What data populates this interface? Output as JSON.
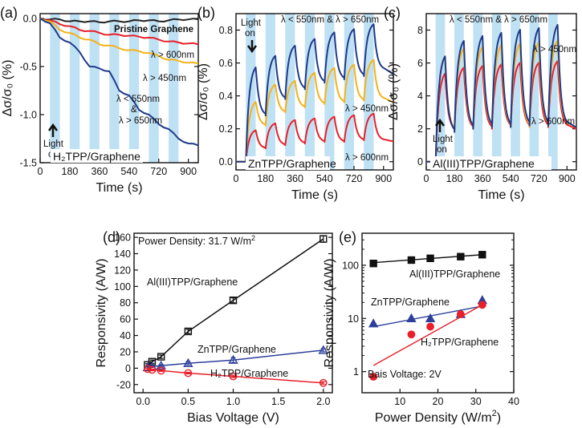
{
  "chart_data": [
    {
      "type": "line",
      "panel_label": "(a)",
      "xlabel": "Time (s)",
      "ylabel": "Δσ/σ₀ (%)",
      "xlim": [
        0,
        960
      ],
      "ylim": [
        -1.5,
        0.05
      ],
      "xticks": [
        0,
        180,
        360,
        540,
        720,
        900
      ],
      "yticks": [
        0.0,
        -0.5,
        -1.0,
        -1.5
      ],
      "ytick_labels": [
        "0.0",
        "-0.5",
        "-1.0",
        "-1.5"
      ],
      "light_on_intervals": [
        [
          60,
          120
        ],
        [
          180,
          240
        ],
        [
          300,
          360
        ],
        [
          420,
          480
        ],
        [
          540,
          600
        ],
        [
          660,
          720
        ],
        [
          780,
          840
        ]
      ],
      "series": [
        {
          "name": "Pristine Graphene",
          "color": "#222222",
          "x": [
            0,
            60,
            120,
            180,
            240,
            300,
            360,
            420,
            480,
            540,
            600,
            660,
            720,
            780,
            840,
            900,
            960
          ],
          "values": [
            0.0,
            -0.01,
            -0.01,
            -0.03,
            -0.03,
            -0.03,
            -0.04,
            -0.03,
            -0.03,
            -0.03,
            -0.02,
            -0.02,
            -0.03,
            -0.02,
            -0.01,
            -0.01,
            -0.01
          ]
        },
        {
          "name": "λ > 600nm",
          "color": "#e8202a",
          "x": [
            0,
            60,
            120,
            180,
            240,
            300,
            360,
            420,
            480,
            540,
            600,
            660,
            720,
            780,
            840,
            900,
            960
          ],
          "values": [
            0.0,
            -0.02,
            -0.06,
            -0.08,
            -0.12,
            -0.13,
            -0.15,
            -0.17,
            -0.17,
            -0.18,
            -0.19,
            -0.2,
            -0.22,
            -0.24,
            -0.25,
            -0.26,
            -0.27
          ]
        },
        {
          "name": "λ > 450nm",
          "color": "#f5b21a",
          "x": [
            0,
            60,
            120,
            180,
            240,
            300,
            360,
            420,
            480,
            540,
            600,
            660,
            720,
            780,
            840,
            900,
            960
          ],
          "values": [
            0.0,
            -0.03,
            -0.12,
            -0.15,
            -0.2,
            -0.22,
            -0.27,
            -0.28,
            -0.31,
            -0.33,
            -0.34,
            -0.36,
            -0.39,
            -0.43,
            -0.44,
            -0.46,
            -0.47
          ]
        },
        {
          "name": "λ < 550nm & λ > 650nm",
          "color": "#1f3a8a",
          "x": [
            0,
            60,
            120,
            180,
            240,
            300,
            360,
            420,
            480,
            540,
            600,
            660,
            720,
            780,
            840,
            900,
            960
          ],
          "values": [
            0.0,
            -0.05,
            -0.2,
            -0.25,
            -0.35,
            -0.5,
            -0.52,
            -0.55,
            -0.75,
            -0.8,
            -0.95,
            -1.0,
            -1.1,
            -1.15,
            -1.25,
            -1.3,
            -1.32
          ]
        }
      ],
      "annotations": {
        "pristine": "Pristine Graphene",
        "s600": "λ > 600nm",
        "s450": "λ > 450nm",
        "band1": "λ < 550nm",
        "amp": "&",
        "band2": "λ > 650nm",
        "light1": "Light",
        "light2": "on",
        "sample": "H₂TPP/Graphene"
      }
    },
    {
      "type": "line",
      "panel_label": "(b)",
      "xlabel": "Time (s)",
      "ylabel": "Δσ/σ₀ (%)",
      "xlim": [
        0,
        960
      ],
      "ylim": [
        -0.05,
        0.9
      ],
      "xticks": [
        0,
        180,
        360,
        540,
        720,
        900
      ],
      "yticks": [
        0.0,
        0.2,
        0.4,
        0.6,
        0.8
      ],
      "ytick_labels": [
        "0.0",
        "0.2",
        "0.4",
        "0.6",
        "0.8"
      ],
      "light_on_intervals": [
        [
          60,
          120
        ],
        [
          180,
          240
        ],
        [
          300,
          360
        ],
        [
          420,
          480
        ],
        [
          540,
          600
        ],
        [
          660,
          720
        ],
        [
          780,
          840
        ]
      ],
      "pulse_peaks": {
        "blue": [
          0.6,
          0.66,
          0.72,
          0.76,
          0.8,
          0.82,
          0.85
        ],
        "blue_trough": [
          0.28,
          0.38,
          0.44,
          0.48,
          0.5,
          0.52,
          0.56
        ],
        "yellow": [
          0.38,
          0.48,
          0.5,
          0.55,
          0.58,
          0.6,
          0.63
        ],
        "yellow_trough": [
          0.22,
          0.3,
          0.33,
          0.35,
          0.36,
          0.37,
          0.38
        ],
        "red": [
          0.2,
          0.24,
          0.26,
          0.27,
          0.28,
          0.29,
          0.3
        ],
        "red_trough": [
          0.08,
          0.1,
          0.11,
          0.12,
          0.12,
          0.13,
          0.13
        ]
      },
      "series": [
        {
          "name": "λ < 550nm & λ > 650nm",
          "color": "#1f3a8a"
        },
        {
          "name": "λ > 450nm",
          "color": "#f5b21a"
        },
        {
          "name": "λ > 600nm",
          "color": "#e8202a"
        }
      ],
      "annotations": {
        "band": "λ < 550nm & λ > 650nm",
        "s450": "λ > 450nm",
        "s600": "λ > 600nm",
        "light1": "Light",
        "light2": "on",
        "sample": "ZnTPP/Graphene"
      }
    },
    {
      "type": "line",
      "panel_label": "(c)",
      "xlabel": "Time (s)",
      "ylabel": "Δσ/σ₀ (%)",
      "xlim": [
        0,
        960
      ],
      "ylim": [
        -0.5,
        9.0
      ],
      "xticks": [
        0,
        180,
        360,
        540,
        720,
        900
      ],
      "yticks": [
        0,
        2,
        4,
        6,
        8
      ],
      "ytick_labels": [
        "0",
        "2",
        "4",
        "6",
        "8"
      ],
      "light_on_intervals": [
        [
          60,
          120
        ],
        [
          180,
          240
        ],
        [
          300,
          360
        ],
        [
          420,
          480
        ],
        [
          540,
          600
        ],
        [
          660,
          720
        ],
        [
          780,
          840
        ]
      ],
      "pulse_peaks": {
        "blue": [
          6.7,
          7.6,
          7.9,
          8.1,
          8.3,
          8.4,
          8.6
        ],
        "blue_trough": [
          1.8,
          2.0,
          2.1,
          2.1,
          2.2,
          2.2,
          2.2
        ],
        "yellow": [
          6.7,
          7.1,
          7.2,
          7.3,
          7.4,
          7.5,
          7.6
        ],
        "yellow_trough": [
          1.9,
          2.0,
          2.1,
          2.1,
          2.1,
          2.2,
          2.2
        ],
        "red": [
          5.6,
          5.9,
          6.0,
          6.1,
          6.2,
          6.2,
          6.3
        ],
        "red_trough": [
          1.9,
          2.0,
          2.0,
          2.1,
          2.1,
          2.1,
          2.1
        ]
      },
      "series": [
        {
          "name": "λ < 550nm & λ > 650nm",
          "color": "#1f3a8a"
        },
        {
          "name": "λ > 450nm",
          "color": "#f5b21a"
        },
        {
          "name": "λ > 600nm",
          "color": "#e8202a"
        }
      ],
      "annotations": {
        "band": "λ < 550nm & λ > 650nm",
        "s450": "λ > 450nm",
        "s600": "λ > 600nm",
        "light1": "Light",
        "light2": "on",
        "sample": "Al(III)TPP/Graphene"
      }
    },
    {
      "type": "line",
      "panel_label": "(d)",
      "xlabel": "Bias Voltage (V)",
      "ylabel": "Responsivity (A/W)",
      "xlim": [
        -0.1,
        2.1
      ],
      "ylim": [
        -30,
        165
      ],
      "xticks": [
        0.0,
        0.5,
        1.0,
        1.5,
        2.0
      ],
      "xtick_labels": [
        "0.0",
        "0.5",
        "1.0",
        "1.5",
        "2.0"
      ],
      "yticks": [
        -20,
        0,
        20,
        40,
        60,
        80,
        100,
        120,
        140,
        160
      ],
      "ytick_labels": [
        "-20",
        "0",
        "20",
        "40",
        "60",
        "80",
        "100",
        "120",
        "140",
        "160"
      ],
      "title": "Power Density: 31.7 W/m²",
      "series": [
        {
          "name": "Al(III)TPP/Graphene",
          "color": "#111111",
          "marker": "square",
          "x": [
            0.05,
            0.1,
            0.2,
            0.5,
            1.0,
            2.0
          ],
          "values": [
            4,
            8,
            14,
            45,
            83,
            158
          ],
          "err": [
            1.5,
            2,
            2,
            2.5,
            3,
            4
          ]
        },
        {
          "name": "ZnTPP/Graphene",
          "color": "#2d3f9a",
          "marker": "triangle",
          "x": [
            0.05,
            0.1,
            0.2,
            0.5,
            1.0,
            2.0
          ],
          "values": [
            1,
            2,
            3,
            6,
            10,
            22
          ],
          "err": [
            1,
            1,
            1.5,
            2,
            3,
            2
          ]
        },
        {
          "name": "H₂TPP/Graphene",
          "color": "#e8202a",
          "marker": "circle",
          "x": [
            0.05,
            0.1,
            0.2,
            0.5,
            1.0,
            2.0
          ],
          "values": [
            -1,
            -2,
            -3,
            -6,
            -10,
            -18
          ],
          "err": [
            1,
            1,
            1,
            1,
            1.5,
            1.5
          ]
        }
      ],
      "annotations": {
        "al": "Al(III)TPP/Graphene",
        "zn": "ZnTPP/Graphene",
        "h2": "H₂TPP/Graphene",
        "title_main": "Power Density: 31.7 W/m",
        "title_sup": "2"
      }
    },
    {
      "type": "scatter",
      "panel_label": "(e)",
      "xlabel": "Power Density (W/m²)",
      "ylabel": "Responsivity (A/W)",
      "xlim": [
        0,
        40
      ],
      "ylog": true,
      "ylim": [
        0.4,
        400
      ],
      "xticks": [
        10,
        20,
        30,
        40
      ],
      "xtick_labels": [
        "10",
        "20",
        "30",
        "40"
      ],
      "yticks": [
        1,
        10,
        100
      ],
      "ytick_labels": [
        "1",
        "10",
        "100"
      ],
      "note": "Bais Voltage: 2V",
      "series": [
        {
          "name": "Al(III)TPP/Graphene",
          "color": "#111111",
          "marker": "square",
          "x": [
            3,
            13,
            18,
            26,
            31.7
          ],
          "values": [
            108,
            125,
            135,
            145,
            158
          ],
          "fit": [
            [
              3,
              112
            ],
            [
              31.7,
              158
            ]
          ]
        },
        {
          "name": "ZnTPP/Graphene",
          "color": "#2d3f9a",
          "marker": "triangle",
          "x": [
            3,
            13,
            18,
            26,
            31.7
          ],
          "values": [
            8,
            10,
            10,
            12,
            22
          ],
          "fit": [
            [
              3,
              7
            ],
            [
              31.7,
              17
            ]
          ]
        },
        {
          "name": "H₂TPP/Graphene",
          "color": "#e8202a",
          "marker": "circle",
          "x": [
            3,
            13,
            18,
            26,
            31.7
          ],
          "values": [
            0.8,
            5,
            7,
            12,
            18
          ],
          "fit": [
            [
              3,
              1.3
            ],
            [
              31.7,
              18
            ]
          ]
        }
      ],
      "annotations": {
        "al": "Al(III)TPP/Graphene",
        "zn": "ZnTPP/Graphene",
        "h2": "H₂TPP/Graphene",
        "note": "Bais Voltage: 2V",
        "xlabel_main": "Power Density (W/m",
        "xlabel_sup": "2",
        "xlabel_end": ")"
      }
    }
  ]
}
